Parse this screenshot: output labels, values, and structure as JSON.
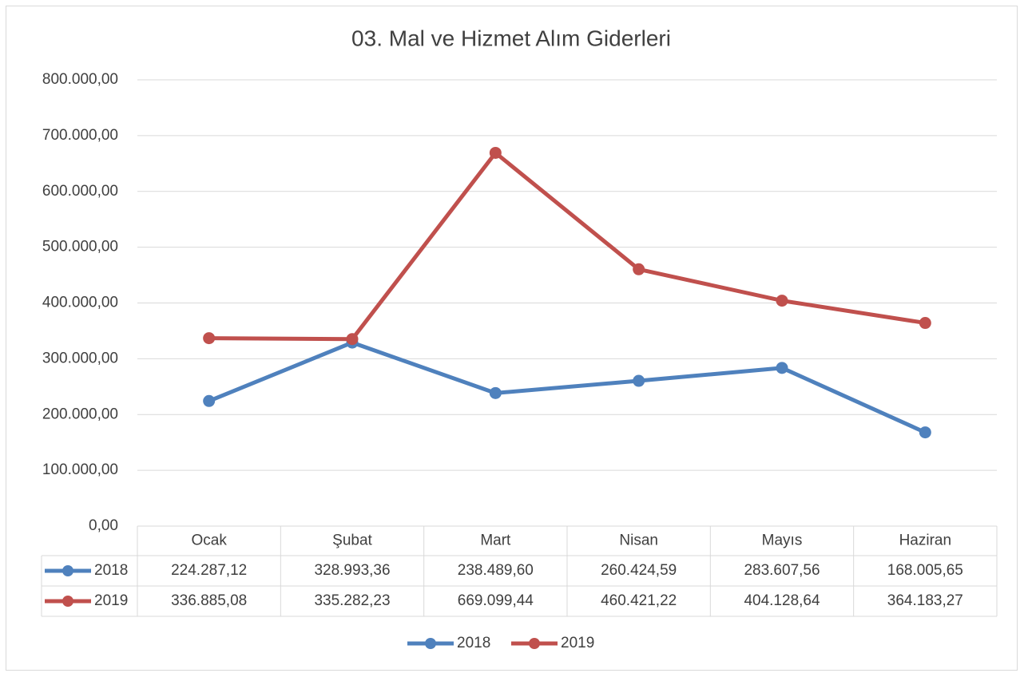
{
  "chart_data": {
    "type": "line",
    "title": "03. Mal ve Hizmet Alım Giderleri",
    "categories": [
      "Ocak",
      "Şubat",
      "Mart",
      "Nisan",
      "Mayıs",
      "Haziran"
    ],
    "series": [
      {
        "name": "2018",
        "color": "#4f81bd",
        "values": [
          224287.12,
          328993.36,
          238489.6,
          260424.59,
          283607.56,
          168005.65
        ],
        "value_labels": [
          "224.287,12",
          "328.993,36",
          "238.489,60",
          "260.424,59",
          "283.607,56",
          "168.005,65"
        ]
      },
      {
        "name": "2019",
        "color": "#c0504d",
        "values": [
          336885.08,
          335282.23,
          669099.44,
          460421.22,
          404128.64,
          364183.27
        ],
        "value_labels": [
          "336.885,08",
          "335.282,23",
          "669.099,44",
          "460.421,22",
          "404.128,64",
          "364.183,27"
        ]
      }
    ],
    "ylim": [
      0,
      800000
    ],
    "yticks": [
      {
        "value": 0,
        "label": "0,00"
      },
      {
        "value": 100000,
        "label": "100.000,00"
      },
      {
        "value": 200000,
        "label": "200.000,00"
      },
      {
        "value": 300000,
        "label": "300.000,00"
      },
      {
        "value": 400000,
        "label": "400.000,00"
      },
      {
        "value": 500000,
        "label": "500.000,00"
      },
      {
        "value": 600000,
        "label": "600.000,00"
      },
      {
        "value": 700000,
        "label": "700.000,00"
      },
      {
        "value": 800000,
        "label": "800.000,00"
      }
    ],
    "grid": true,
    "legend": "bottom",
    "data_table": true
  }
}
